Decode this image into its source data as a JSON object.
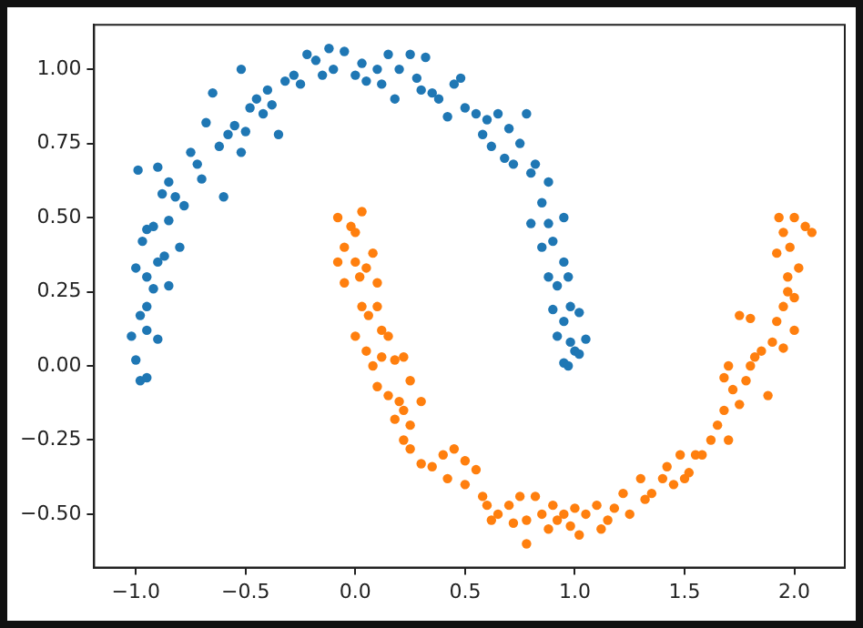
{
  "chart_data": {
    "type": "scatter",
    "marker": "circle",
    "xlim": [
      -1.19,
      2.23
    ],
    "ylim": [
      -0.68,
      1.15
    ],
    "xticks": [
      {
        "value": -1,
        "label": "−1.0"
      },
      {
        "value": -0.5,
        "label": "−0.5"
      },
      {
        "value": 0,
        "label": "0.0"
      },
      {
        "value": 0.5,
        "label": "0.5"
      },
      {
        "value": 1,
        "label": "1.0"
      },
      {
        "value": 1.5,
        "label": "1.5"
      },
      {
        "value": 2,
        "label": "2.0"
      }
    ],
    "yticks": [
      {
        "value": -0.5,
        "label": "−0.50"
      },
      {
        "value": -0.25,
        "label": "−0.25"
      },
      {
        "value": 0,
        "label": "0.00"
      },
      {
        "value": 0.25,
        "label": "0.25"
      },
      {
        "value": 0.5,
        "label": "0.50"
      },
      {
        "value": 0.75,
        "label": "0.75"
      },
      {
        "value": 1,
        "label": "1.00"
      }
    ],
    "series": [
      {
        "color": "#1f77b4",
        "x": [
          -1.0,
          -1.02,
          -1.0,
          -0.98,
          -0.95,
          -0.98,
          -0.95,
          -0.95,
          -0.9,
          -0.95,
          -0.92,
          -0.9,
          -0.87,
          -0.85,
          -0.97,
          -0.95,
          -0.92,
          -0.85,
          -0.8,
          -0.99,
          -0.9,
          -0.88,
          -0.85,
          -0.82,
          -0.78,
          -0.75,
          -0.72,
          -0.7,
          -0.68,
          -0.65,
          -0.62,
          -0.6,
          -0.58,
          -0.55,
          -0.52,
          -0.5,
          -0.48,
          -0.52,
          -0.45,
          -0.42,
          -0.4,
          -0.38,
          -0.35,
          -0.32,
          -0.28,
          -0.25,
          -0.22,
          -0.18,
          -0.15,
          -0.12,
          -0.1,
          -0.05,
          0.0,
          0.03,
          0.05,
          0.1,
          0.12,
          0.15,
          0.18,
          0.2,
          0.25,
          0.28,
          0.3,
          0.32,
          0.35,
          0.38,
          0.42,
          0.45,
          0.48,
          0.5,
          0.55,
          0.58,
          0.6,
          0.62,
          0.65,
          0.68,
          0.7,
          0.72,
          0.75,
          0.78,
          0.8,
          0.82,
          0.85,
          0.88,
          0.8,
          0.85,
          0.88,
          0.9,
          0.95,
          0.88,
          0.92,
          0.95,
          0.97,
          0.9,
          0.95,
          0.98,
          1.02,
          0.92,
          0.98,
          1.0,
          1.05,
          0.95,
          0.97,
          1.02
        ],
        "values": [
          0.33,
          0.1,
          0.02,
          -0.05,
          -0.04,
          0.17,
          0.2,
          0.12,
          0.09,
          0.3,
          0.26,
          0.35,
          0.37,
          0.27,
          0.42,
          0.46,
          0.47,
          0.49,
          0.4,
          0.66,
          0.67,
          0.58,
          0.62,
          0.57,
          0.54,
          0.72,
          0.68,
          0.63,
          0.82,
          0.92,
          0.74,
          0.57,
          0.78,
          0.81,
          0.72,
          0.79,
          0.87,
          1.0,
          0.9,
          0.85,
          0.93,
          0.88,
          0.78,
          0.96,
          0.98,
          0.95,
          1.05,
          1.03,
          0.98,
          1.07,
          1.0,
          1.06,
          0.98,
          1.02,
          0.96,
          1.0,
          0.95,
          1.05,
          0.9,
          1.0,
          1.05,
          0.97,
          0.93,
          1.04,
          0.92,
          0.9,
          0.84,
          0.95,
          0.97,
          0.87,
          0.85,
          0.78,
          0.83,
          0.74,
          0.85,
          0.7,
          0.8,
          0.68,
          0.75,
          0.85,
          0.65,
          0.68,
          0.55,
          0.62,
          0.48,
          0.4,
          0.48,
          0.42,
          0.5,
          0.3,
          0.27,
          0.35,
          0.3,
          0.19,
          0.15,
          0.2,
          0.18,
          0.1,
          0.08,
          0.05,
          0.09,
          0.01,
          0.0,
          0.04
        ]
      },
      {
        "color": "#ff7f0e",
        "x": [
          -0.08,
          -0.05,
          -0.08,
          -0.02,
          0.0,
          0.03,
          0.0,
          -0.05,
          0.02,
          0.05,
          0.08,
          0.1,
          0.03,
          0.06,
          0.1,
          0.12,
          0.0,
          0.05,
          0.08,
          0.12,
          0.15,
          0.18,
          0.22,
          0.1,
          0.15,
          0.2,
          0.25,
          0.18,
          0.22,
          0.25,
          0.3,
          0.22,
          0.25,
          0.3,
          0.35,
          0.4,
          0.42,
          0.45,
          0.5,
          0.5,
          0.55,
          0.58,
          0.6,
          0.62,
          0.65,
          0.7,
          0.72,
          0.75,
          0.78,
          0.78,
          0.82,
          0.85,
          0.88,
          0.9,
          0.92,
          0.95,
          0.98,
          1.0,
          1.02,
          1.05,
          1.1,
          1.12,
          1.15,
          1.18,
          1.22,
          1.25,
          1.3,
          1.32,
          1.35,
          1.4,
          1.42,
          1.45,
          1.48,
          1.5,
          1.52,
          1.55,
          1.58,
          1.62,
          1.65,
          1.68,
          1.7,
          1.72,
          1.75,
          1.78,
          1.8,
          1.82,
          1.68,
          1.7,
          1.75,
          1.8,
          1.85,
          1.88,
          1.9,
          1.92,
          1.95,
          1.95,
          1.97,
          2.0,
          2.0,
          2.02,
          1.92,
          1.95,
          1.98,
          1.93,
          2.0,
          2.05,
          2.08,
          1.97
        ],
        "values": [
          0.5,
          0.4,
          0.35,
          0.47,
          0.45,
          0.52,
          0.35,
          0.28,
          0.3,
          0.33,
          0.38,
          0.28,
          0.2,
          0.17,
          0.2,
          0.12,
          0.1,
          0.05,
          0.0,
          0.03,
          0.1,
          0.02,
          0.03,
          -0.07,
          -0.1,
          -0.12,
          -0.05,
          -0.18,
          -0.15,
          -0.2,
          -0.12,
          -0.25,
          -0.28,
          -0.33,
          -0.34,
          -0.3,
          -0.38,
          -0.28,
          -0.32,
          -0.4,
          -0.35,
          -0.44,
          -0.47,
          -0.52,
          -0.5,
          -0.47,
          -0.53,
          -0.44,
          -0.52,
          -0.6,
          -0.44,
          -0.5,
          -0.55,
          -0.47,
          -0.52,
          -0.5,
          -0.54,
          -0.48,
          -0.57,
          -0.5,
          -0.47,
          -0.55,
          -0.52,
          -0.48,
          -0.43,
          -0.5,
          -0.38,
          -0.45,
          -0.43,
          -0.38,
          -0.34,
          -0.4,
          -0.3,
          -0.38,
          -0.36,
          -0.3,
          -0.3,
          -0.25,
          -0.2,
          -0.15,
          -0.25,
          -0.08,
          -0.13,
          -0.05,
          0.0,
          0.03,
          -0.04,
          0.0,
          0.17,
          0.16,
          0.05,
          -0.1,
          0.08,
          0.15,
          0.06,
          0.2,
          0.25,
          0.12,
          0.23,
          0.33,
          0.38,
          0.45,
          0.4,
          0.5,
          0.5,
          0.47,
          0.45,
          0.3
        ]
      }
    ]
  }
}
